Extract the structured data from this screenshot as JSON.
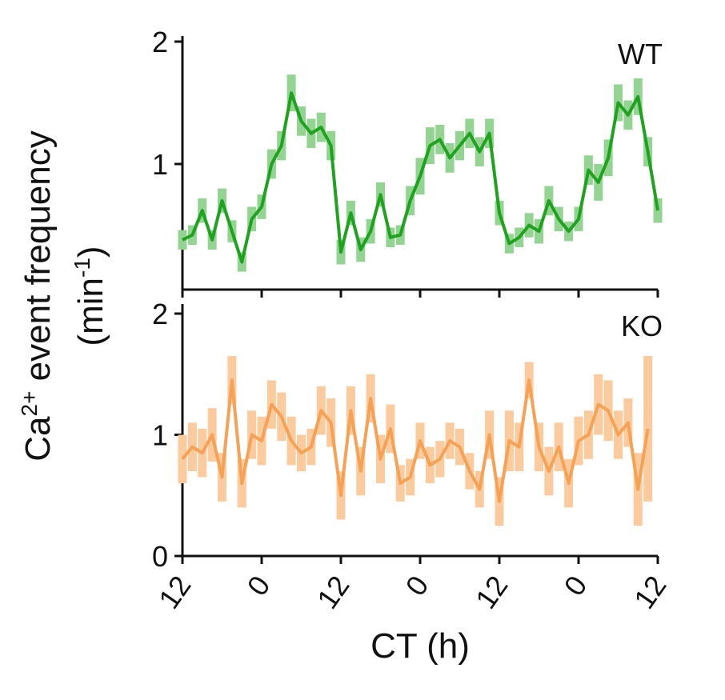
{
  "chart_data": [
    {
      "type": "line",
      "label": "WT",
      "ylabel": {
        "line1": [
          "Ca",
          "2+",
          " event frequency"
        ],
        "line2": [
          "(min",
          "-1",
          ")"
        ]
      },
      "x": [
        0,
        1.5,
        3,
        4.5,
        6,
        7.5,
        9,
        10.5,
        12,
        13.5,
        15,
        16.5,
        18,
        19.5,
        21,
        22.5,
        24,
        25.5,
        27,
        28.5,
        30,
        31.5,
        33,
        34.5,
        36,
        37.5,
        39,
        40.5,
        42,
        43.5,
        45,
        46.5,
        48,
        49.5,
        51,
        52.5,
        54,
        55.5,
        57,
        58.5,
        60,
        61.5,
        63,
        64.5,
        66,
        67.5,
        69,
        70.5,
        72
      ],
      "series": [
        {
          "color": "#1fa31f",
          "band_color": "#93d493",
          "values": [
            0.38,
            0.42,
            0.62,
            0.38,
            0.7,
            0.45,
            0.2,
            0.55,
            0.65,
            1.0,
            1.15,
            1.58,
            1.35,
            1.25,
            1.3,
            1.15,
            0.28,
            0.6,
            0.3,
            0.45,
            0.75,
            0.4,
            0.42,
            0.7,
            0.9,
            1.15,
            1.2,
            1.05,
            1.15,
            1.25,
            1.1,
            1.25,
            0.6,
            0.35,
            0.4,
            0.5,
            0.45,
            0.7,
            0.55,
            0.45,
            0.55,
            0.95,
            0.85,
            1.05,
            1.5,
            1.4,
            1.55,
            1.1,
            0.62
          ],
          "errors": [
            0.08,
            0.08,
            0.1,
            0.08,
            0.1,
            0.09,
            0.08,
            0.1,
            0.1,
            0.12,
            0.12,
            0.15,
            0.12,
            0.12,
            0.12,
            0.12,
            0.1,
            0.1,
            0.1,
            0.1,
            0.1,
            0.08,
            0.08,
            0.12,
            0.15,
            0.15,
            0.12,
            0.12,
            0.12,
            0.12,
            0.12,
            0.12,
            0.1,
            0.08,
            0.08,
            0.1,
            0.1,
            0.12,
            0.1,
            0.08,
            0.1,
            0.12,
            0.15,
            0.15,
            0.15,
            0.12,
            0.15,
            0.12,
            0.1
          ]
        }
      ],
      "ylim": [
        0,
        2
      ],
      "yticks": [
        1,
        2
      ],
      "xlim": [
        0,
        72
      ]
    },
    {
      "type": "line",
      "label": "KO",
      "xlabel": "CT (h)",
      "x": [
        0,
        1.5,
        3,
        4.5,
        6,
        7.5,
        9,
        10.5,
        12,
        13.5,
        15,
        16.5,
        18,
        19.5,
        21,
        22.5,
        24,
        25.5,
        27,
        28.5,
        30,
        31.5,
        33,
        34.5,
        36,
        37.5,
        39,
        40.5,
        42,
        43.5,
        45,
        46.5,
        48,
        49.5,
        51,
        52.5,
        54,
        55.5,
        57,
        58.5,
        60,
        61.5,
        63,
        64.5,
        66,
        67.5,
        69,
        70.5
      ],
      "series": [
        {
          "color": "#f7a155",
          "band_color": "#fbcb9e",
          "values": [
            0.8,
            0.9,
            0.85,
            1.0,
            0.65,
            1.45,
            0.6,
            1.0,
            0.95,
            1.25,
            1.15,
            0.95,
            0.85,
            0.9,
            1.2,
            1.1,
            0.5,
            1.2,
            0.7,
            1.3,
            0.8,
            1.05,
            0.6,
            0.65,
            0.95,
            0.75,
            0.8,
            0.95,
            0.9,
            0.7,
            0.55,
            1.0,
            0.45,
            0.95,
            0.9,
            1.45,
            0.9,
            0.7,
            0.9,
            0.6,
            0.95,
            1.0,
            1.25,
            1.2,
            1.0,
            1.1,
            0.55,
            1.05
          ],
          "errors": [
            0.2,
            0.2,
            0.2,
            0.22,
            0.2,
            0.2,
            0.2,
            0.2,
            0.2,
            0.2,
            0.2,
            0.2,
            0.15,
            0.15,
            0.2,
            0.2,
            0.2,
            0.2,
            0.2,
            0.2,
            0.2,
            0.2,
            0.15,
            0.15,
            0.15,
            0.15,
            0.15,
            0.15,
            0.15,
            0.15,
            0.15,
            0.2,
            0.2,
            0.25,
            0.2,
            0.15,
            0.2,
            0.2,
            0.2,
            0.2,
            0.2,
            0.2,
            0.25,
            0.25,
            0.2,
            0.2,
            0.3,
            0.6
          ]
        }
      ],
      "ylim": [
        0,
        2
      ],
      "yticks": [
        0,
        1,
        2
      ],
      "xlim": [
        0,
        72
      ],
      "xticks": [
        {
          "value": 0,
          "label": "12"
        },
        {
          "value": 12,
          "label": "0"
        },
        {
          "value": 24,
          "label": "12"
        },
        {
          "value": 36,
          "label": "0"
        },
        {
          "value": 48,
          "label": "12"
        },
        {
          "value": 60,
          "label": "0"
        },
        {
          "value": 72,
          "label": "12"
        }
      ]
    }
  ]
}
